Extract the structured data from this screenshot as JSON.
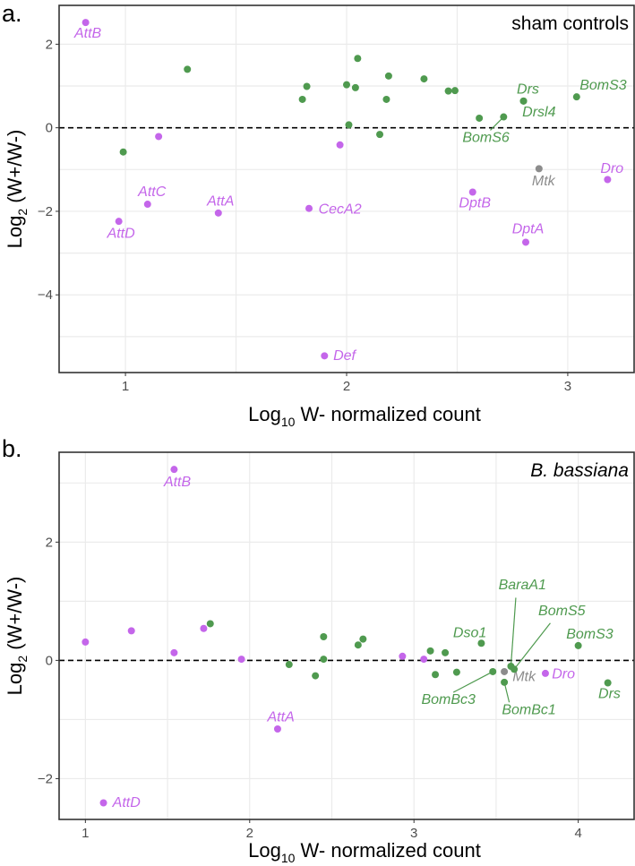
{
  "colors": {
    "purple": "#c466ea",
    "green": "#4f9a4f",
    "gray": "#8c8c8c",
    "zero_line": "#000000"
  },
  "chart_data": [
    {
      "type": "scatter",
      "panel_label": "a.",
      "title": "sham controls",
      "title_italic": false,
      "xlabel_prefix": "Log",
      "xlabel_sub": "10",
      "xlabel_suffix": " W- normalized count",
      "ylabel_prefix": "Log",
      "ylabel_sub": "2",
      "ylabel_suffix": " (W+/W-)",
      "xlim": [
        0.7,
        3.3
      ],
      "ylim": [
        -5.86,
        2.93
      ],
      "xticks": [
        1,
        2,
        3
      ],
      "xminor": [
        1.5,
        2.5
      ],
      "yticks": [
        2,
        0,
        -2,
        -4
      ],
      "yminor": [
        1,
        -1,
        -3,
        -5
      ],
      "ytick_labels": [
        "2",
        "0",
        "−2",
        "−4"
      ],
      "grid": true,
      "hline": 0,
      "points": [
        {
          "x": 0.82,
          "y": 2.52,
          "c": "purple",
          "label": "AttB",
          "lx": 0.83,
          "ly": 2.26
        },
        {
          "x": 1.28,
          "y": 1.4,
          "c": "green"
        },
        {
          "x": 0.99,
          "y": -0.58,
          "c": "green"
        },
        {
          "x": 1.15,
          "y": -0.21,
          "c": "purple"
        },
        {
          "x": 1.1,
          "y": -1.83,
          "c": "purple",
          "label": "AttC",
          "lx": 1.12,
          "ly": -1.54
        },
        {
          "x": 0.97,
          "y": -2.24,
          "c": "purple",
          "label": "AttD",
          "lx": 0.98,
          "ly": -2.54
        },
        {
          "x": 1.42,
          "y": -2.04,
          "c": "purple",
          "label": "AttA",
          "lx": 1.43,
          "ly": -1.77
        },
        {
          "x": 1.83,
          "y": -1.93,
          "c": "purple",
          "label": "CecA2",
          "lx": 1.97,
          "ly": -1.96
        },
        {
          "x": 1.9,
          "y": -5.46,
          "c": "purple",
          "label": "Def",
          "lx": 1.99,
          "ly": -5.46
        },
        {
          "x": 1.97,
          "y": -0.41,
          "c": "purple"
        },
        {
          "x": 1.8,
          "y": 0.68,
          "c": "green"
        },
        {
          "x": 1.82,
          "y": 0.99,
          "c": "green"
        },
        {
          "x": 2.0,
          "y": 1.03,
          "c": "green"
        },
        {
          "x": 2.04,
          "y": 0.96,
          "c": "green"
        },
        {
          "x": 2.05,
          "y": 1.66,
          "c": "green"
        },
        {
          "x": 2.01,
          "y": 0.07,
          "c": "green"
        },
        {
          "x": 2.15,
          "y": -0.16,
          "c": "green"
        },
        {
          "x": 2.18,
          "y": 0.68,
          "c": "green"
        },
        {
          "x": 2.19,
          "y": 1.24,
          "c": "green"
        },
        {
          "x": 2.35,
          "y": 1.17,
          "c": "green"
        },
        {
          "x": 2.46,
          "y": 0.88,
          "c": "green"
        },
        {
          "x": 2.49,
          "y": 0.89,
          "c": "green"
        },
        {
          "x": 2.6,
          "y": 0.23,
          "c": "green"
        },
        {
          "x": 2.71,
          "y": 0.26,
          "c": "green",
          "label": "BomS6",
          "lx": 2.63,
          "ly": -0.24,
          "leader": [
            2.65,
            -0.06
          ]
        },
        {
          "x": 2.8,
          "y": 0.64,
          "c": "green",
          "label": "Drs",
          "lx": 2.82,
          "ly": 0.91
        },
        {
          "x": 2.8,
          "y": 0.64,
          "c": "green",
          "label": "Drsl4",
          "lx": 2.87,
          "ly": 0.37
        },
        {
          "x": 3.04,
          "y": 0.74,
          "c": "green",
          "label": "BomS3",
          "lx": 3.16,
          "ly": 1.01
        },
        {
          "x": 2.87,
          "y": -0.98,
          "c": "gray",
          "label": "Mtk",
          "lx": 2.89,
          "ly": -1.28
        },
        {
          "x": 3.18,
          "y": -1.24,
          "c": "purple",
          "label": "Dro",
          "lx": 3.2,
          "ly": -0.98
        },
        {
          "x": 2.57,
          "y": -1.54,
          "c": "purple",
          "label": "DptB",
          "lx": 2.58,
          "ly": -1.81
        },
        {
          "x": 2.81,
          "y": -2.74,
          "c": "purple",
          "label": "DptA",
          "lx": 2.82,
          "ly": -2.43
        }
      ]
    },
    {
      "type": "scatter",
      "panel_label": "b.",
      "title": "B. bassiana",
      "title_italic": true,
      "xlabel_prefix": "Log",
      "xlabel_sub": "10",
      "xlabel_suffix": " W- normalized count",
      "ylabel_prefix": "Log",
      "ylabel_sub": "2",
      "ylabel_suffix": " (W+/W-)",
      "xlim": [
        0.84,
        4.34
      ],
      "ylim": [
        -2.69,
        3.52
      ],
      "xticks": [
        1,
        2,
        3,
        4
      ],
      "xminor": [
        1.5,
        2.5,
        3.5
      ],
      "yticks": [
        2,
        0,
        -2
      ],
      "yminor": [
        3,
        1,
        -1
      ],
      "ytick_labels": [
        "2",
        "0",
        "−2"
      ],
      "grid": true,
      "hline": 0,
      "points": [
        {
          "x": 1.0,
          "y": 0.31,
          "c": "purple"
        },
        {
          "x": 1.28,
          "y": 0.5,
          "c": "purple"
        },
        {
          "x": 1.54,
          "y": 3.23,
          "c": "purple",
          "label": "AttB",
          "lx": 1.56,
          "ly": 3.01
        },
        {
          "x": 1.54,
          "y": 0.13,
          "c": "purple"
        },
        {
          "x": 1.72,
          "y": 0.54,
          "c": "purple"
        },
        {
          "x": 1.76,
          "y": 0.62,
          "c": "green"
        },
        {
          "x": 1.95,
          "y": 0.02,
          "c": "purple"
        },
        {
          "x": 2.24,
          "y": -0.07,
          "c": "green"
        },
        {
          "x": 2.4,
          "y": -0.26,
          "c": "green"
        },
        {
          "x": 2.45,
          "y": 0.4,
          "c": "green"
        },
        {
          "x": 2.45,
          "y": 0.02,
          "c": "green"
        },
        {
          "x": 2.66,
          "y": 0.26,
          "c": "green"
        },
        {
          "x": 2.69,
          "y": 0.36,
          "c": "green"
        },
        {
          "x": 2.17,
          "y": -1.16,
          "c": "purple",
          "label": "AttA",
          "lx": 2.19,
          "ly": -0.96
        },
        {
          "x": 1.11,
          "y": -2.41,
          "c": "purple",
          "label": "AttD",
          "lx": 1.25,
          "ly": -2.41
        },
        {
          "x": 2.93,
          "y": 0.07,
          "c": "purple"
        },
        {
          "x": 3.06,
          "y": 0.02,
          "c": "purple"
        },
        {
          "x": 3.1,
          "y": 0.16,
          "c": "green"
        },
        {
          "x": 3.13,
          "y": -0.24,
          "c": "green"
        },
        {
          "x": 3.19,
          "y": 0.13,
          "c": "green"
        },
        {
          "x": 3.26,
          "y": -0.2,
          "c": "green"
        },
        {
          "x": 3.41,
          "y": 0.29,
          "c": "green",
          "label": "Dso1",
          "lx": 3.34,
          "ly": 0.46
        },
        {
          "x": 3.48,
          "y": -0.19,
          "c": "green",
          "label": "BomBc3",
          "lx": 3.21,
          "ly": -0.67,
          "leader": [
            3.24,
            -0.54
          ]
        },
        {
          "x": 3.55,
          "y": -0.19,
          "c": "gray",
          "label": "Mtk",
          "lx": 3.67,
          "ly": -0.28
        },
        {
          "x": 3.55,
          "y": -0.37,
          "c": "green",
          "label": "BomBc1",
          "lx": 3.7,
          "ly": -0.84,
          "leader": [
            3.58,
            -0.71
          ]
        },
        {
          "x": 3.59,
          "y": -0.1,
          "c": "green",
          "label": "BaraA1",
          "lx": 3.66,
          "ly": 1.27,
          "leader": [
            3.62,
            1.06
          ]
        },
        {
          "x": 3.61,
          "y": -0.15,
          "c": "green",
          "label": "BomS5",
          "lx": 3.9,
          "ly": 0.83,
          "leader": [
            3.83,
            0.63
          ]
        },
        {
          "x": 3.8,
          "y": -0.22,
          "c": "purple",
          "label": "Dro",
          "lx": 3.91,
          "ly": -0.24
        },
        {
          "x": 4.0,
          "y": 0.25,
          "c": "green",
          "label": "BomS3",
          "lx": 4.07,
          "ly": 0.44
        },
        {
          "x": 4.18,
          "y": -0.38,
          "c": "green",
          "label": "Drs",
          "lx": 4.19,
          "ly": -0.57
        }
      ]
    }
  ]
}
